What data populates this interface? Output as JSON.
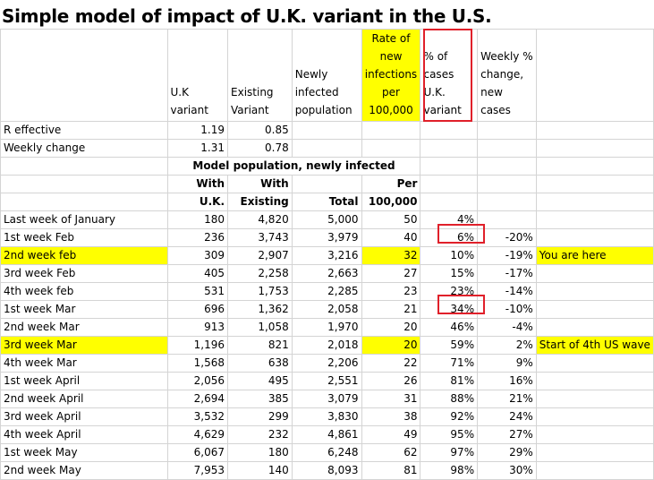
{
  "title": "Simple model of impact of U.K. variant in the U.S.",
  "header": {
    "uk": "U.K variant",
    "existing": "Existing Variant",
    "newly": "Newly infected population",
    "rate": "Rate of new infections per 100,000",
    "pct": "% of cases U.K. variant",
    "weekly": "Weekly % change, new cases"
  },
  "params": [
    {
      "label": "R effective",
      "uk": "1.19",
      "existing": "0.85"
    },
    {
      "label": "Weekly change",
      "uk": "1.31",
      "existing": "0.78"
    }
  ],
  "model_heading": "Model population, newly infected",
  "subheaders": {
    "uk_top": "With",
    "uk_bottom": "U.K.",
    "ex_top": "With",
    "ex_bottom": "Existing",
    "total": "Total",
    "per_top": "Per",
    "per_bottom": "100,000"
  },
  "rows": [
    {
      "label": "Last week of January",
      "uk": "180",
      "existing": "4,820",
      "total": "5,000",
      "per": "50",
      "pct": "4%",
      "chg": "",
      "note": "",
      "highlight": false
    },
    {
      "label": "1st week Feb",
      "uk": "236",
      "existing": "3,743",
      "total": "3,979",
      "per": "40",
      "pct": "6%",
      "chg": "-20%",
      "note": "",
      "highlight": false
    },
    {
      "label": "2nd week feb",
      "uk": "309",
      "existing": "2,907",
      "total": "3,216",
      "per": "32",
      "pct": "10%",
      "chg": "-19%",
      "note": "You are here",
      "highlight": true
    },
    {
      "label": "3rd week Feb",
      "uk": "405",
      "existing": "2,258",
      "total": "2,663",
      "per": "27",
      "pct": "15%",
      "chg": "-17%",
      "note": "",
      "highlight": false
    },
    {
      "label": "4th week feb",
      "uk": "531",
      "existing": "1,753",
      "total": "2,285",
      "per": "23",
      "pct": "23%",
      "chg": "-14%",
      "note": "",
      "highlight": false
    },
    {
      "label": "1st week Mar",
      "uk": "696",
      "existing": "1,362",
      "total": "2,058",
      "per": "21",
      "pct": "34%",
      "chg": "-10%",
      "note": "",
      "highlight": false
    },
    {
      "label": "2nd week Mar",
      "uk": "913",
      "existing": "1,058",
      "total": "1,970",
      "per": "20",
      "pct": "46%",
      "chg": "-4%",
      "note": "",
      "highlight": false
    },
    {
      "label": "3rd week Mar",
      "uk": "1,196",
      "existing": "821",
      "total": "2,018",
      "per": "20",
      "pct": "59%",
      "chg": "2%",
      "note": "Start of 4th US wave",
      "highlight": true
    },
    {
      "label": "4th week Mar",
      "uk": "1,568",
      "existing": "638",
      "total": "2,206",
      "per": "22",
      "pct": "71%",
      "chg": "9%",
      "note": "",
      "highlight": false
    },
    {
      "label": "1st week April",
      "uk": "2,056",
      "existing": "495",
      "total": "2,551",
      "per": "26",
      "pct": "81%",
      "chg": "16%",
      "note": "",
      "highlight": false
    },
    {
      "label": "2nd week April",
      "uk": "2,694",
      "existing": "385",
      "total": "3,079",
      "per": "31",
      "pct": "88%",
      "chg": "21%",
      "note": "",
      "highlight": false
    },
    {
      "label": "3rd week April",
      "uk": "3,532",
      "existing": "299",
      "total": "3,830",
      "per": "38",
      "pct": "92%",
      "chg": "24%",
      "note": "",
      "highlight": false
    },
    {
      "label": "4th week April",
      "uk": "4,629",
      "existing": "232",
      "total": "4,861",
      "per": "49",
      "pct": "95%",
      "chg": "27%",
      "note": "",
      "highlight": false
    },
    {
      "label": "1st week May",
      "uk": "6,067",
      "existing": "180",
      "total": "6,248",
      "per": "62",
      "pct": "97%",
      "chg": "29%",
      "note": "",
      "highlight": false
    },
    {
      "label": "2nd week May",
      "uk": "7,953",
      "existing": "140",
      "total": "8,093",
      "per": "81",
      "pct": "98%",
      "chg": "30%",
      "note": "",
      "highlight": false
    }
  ],
  "colors": {
    "highlight": "#ffff00",
    "callout_border": "#e0202a",
    "gridline": "#d4d4d4"
  }
}
